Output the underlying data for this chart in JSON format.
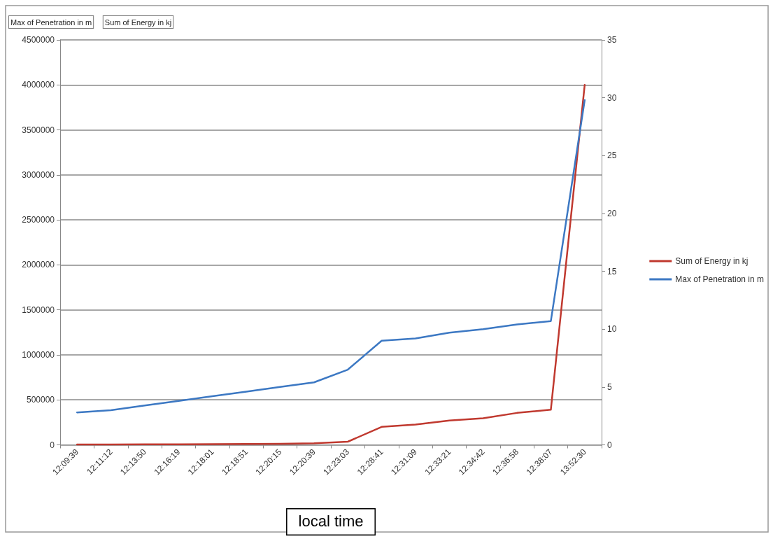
{
  "chart_data": {
    "type": "line",
    "xlabel": "local time",
    "annotations": [
      "Max of Penetration in m",
      "Sum of Energy in kj"
    ],
    "categories": [
      "12:09:39",
      "12:11:12",
      "12:13:50",
      "12:16:19",
      "12:18:01",
      "12:18:51",
      "12:20:15",
      "12:20:39",
      "12:23:03",
      "12:28:41",
      "12:31:09",
      "12:33:21",
      "12:34:42",
      "12:36:58",
      "12:38:07",
      "13:52:30"
    ],
    "series": [
      {
        "name": "Sum of Energy in kj",
        "color": "#c0392f",
        "values": [
          3000,
          4000,
          5000,
          6000,
          8000,
          10000,
          12000,
          17000,
          35000,
          200000,
          225000,
          270000,
          295000,
          355000,
          390000,
          4000000
        ]
      },
      {
        "name": "Max of Penetration in m",
        "color": "#3c78c3",
        "axis": "y2",
        "values": [
          2.8,
          3.0,
          3.4,
          3.8,
          4.2,
          4.6,
          5.0,
          5.4,
          6.5,
          9.0,
          9.2,
          9.7,
          10.0,
          10.4,
          10.7,
          29.8
        ]
      }
    ],
    "ylim": [
      0,
      4500000
    ],
    "yticks": [
      0,
      500000,
      1000000,
      1500000,
      2000000,
      2500000,
      3000000,
      3500000,
      4000000,
      4500000
    ],
    "y2lim": [
      0,
      35
    ],
    "y2ticks": [
      0,
      5,
      10,
      15,
      20,
      25,
      30,
      35
    ],
    "grid": "y",
    "legend": "right",
    "marker": "none",
    "line_style": "solid"
  }
}
